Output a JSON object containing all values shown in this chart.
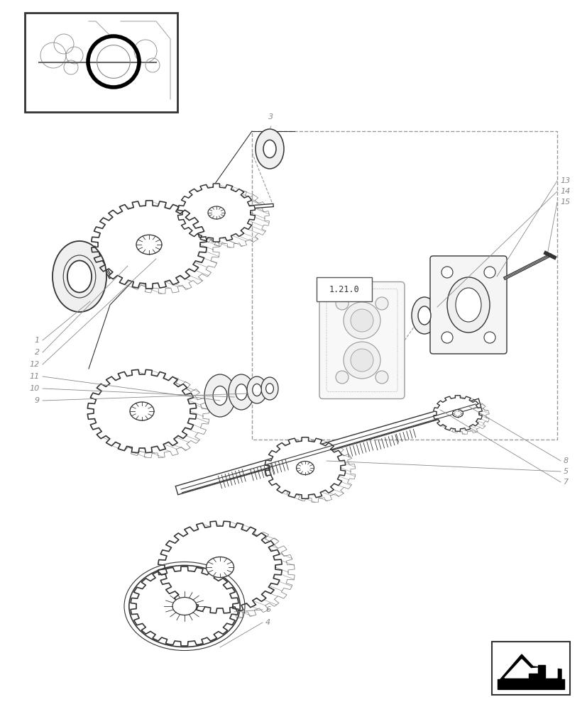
{
  "bg_color": "#ffffff",
  "lc": "#333333",
  "lc_thin": "#666666",
  "lc_gray": "#999999",
  "label_color": "#888888",
  "dashed_color": "#999999"
}
